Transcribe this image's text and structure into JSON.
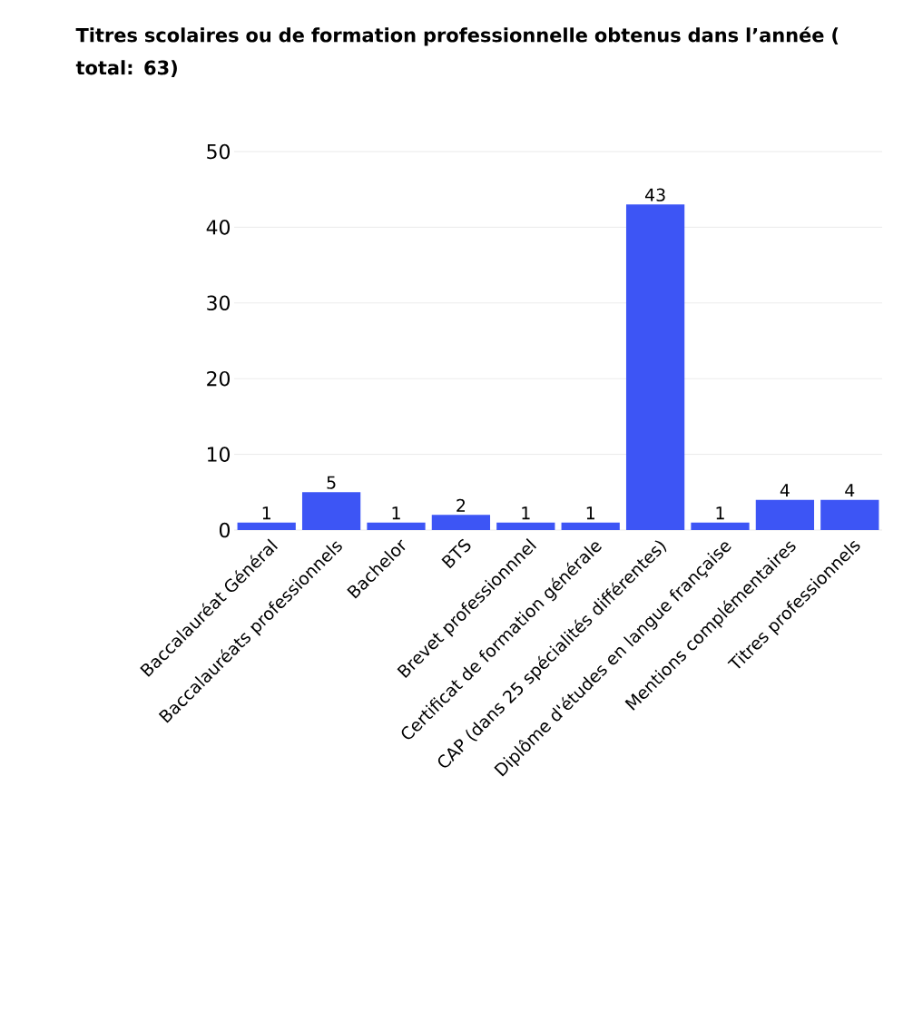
{
  "chart_data": {
    "type": "bar",
    "title": "Titres scolaires ou de formation professionnelle obtenus dans l’année ( total: 63)",
    "categories": [
      "Baccalauréat Général",
      "Baccalauréats professionnels",
      "Bachelor",
      "BTS",
      "Brevet professionnnel",
      "Certificat de formation générale",
      "CAP (dans 25 spécialités différentes)",
      "Diplôme d'études en langue française",
      "Mentions complémentaires",
      "Titres professionnels"
    ],
    "values": [
      1,
      5,
      1,
      2,
      1,
      1,
      43,
      1,
      4,
      4
    ],
    "color": "#3d55f5",
    "ylim": [
      0,
      50
    ],
    "yticks": [
      0,
      10,
      20,
      30,
      40,
      50
    ],
    "grid": "y",
    "data_labels": true
  }
}
